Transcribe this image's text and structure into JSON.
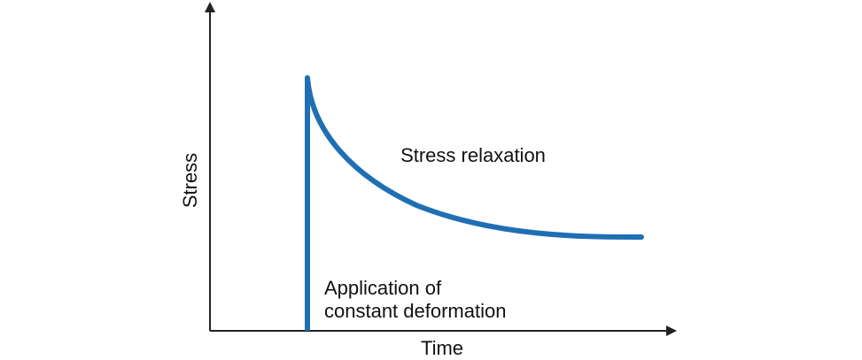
{
  "diagram": {
    "axes": {
      "x_label": "Time",
      "y_label": "Stress"
    },
    "annotations": {
      "relaxation": "Stress relaxation",
      "application_line1": "Application of",
      "application_line2": "constant deformation"
    },
    "colors": {
      "curve": "#1f6fb5",
      "axis": "#222222",
      "text": "#111111"
    }
  }
}
